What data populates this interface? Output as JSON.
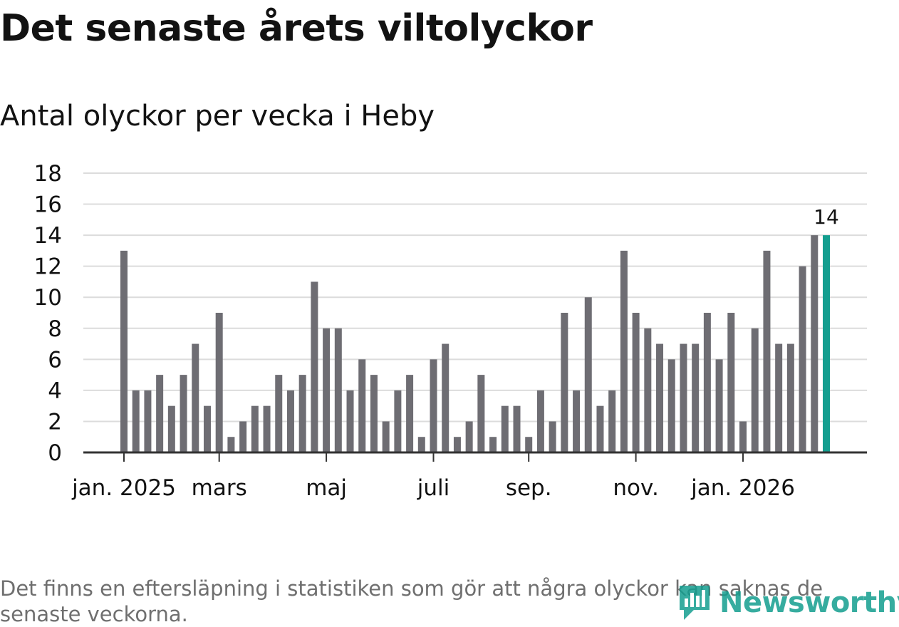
{
  "header": {
    "title": "Det senaste årets viltolyckor",
    "subtitle": "Antal olyckor per vecka i Heby"
  },
  "footer": {
    "note": "Det finns en eftersläpning i statistiken som gör att några olyckor kan saknas de senaste veckorna.",
    "brand": "Newsworthy"
  },
  "colors": {
    "bar": "#6e6d73",
    "highlight": "#149e8f",
    "grid": "#dcdcdc",
    "axis": "#333333",
    "text": "#121212"
  },
  "chart_data": {
    "type": "bar",
    "ylim": [
      0,
      18
    ],
    "yticks": [
      0,
      2,
      4,
      6,
      8,
      10,
      12,
      14,
      16,
      18
    ],
    "grid": true,
    "xtick_labels": [
      {
        "label": "jan. 2025",
        "at_index": 0
      },
      {
        "label": "mars",
        "at_index": 8
      },
      {
        "label": "maj",
        "at_index": 17
      },
      {
        "label": "juli",
        "at_index": 26
      },
      {
        "label": "sep.",
        "at_index": 34
      },
      {
        "label": "nov.",
        "at_index": 43
      },
      {
        "label": "jan. 2026",
        "at_index": 52
      }
    ],
    "values": [
      13,
      4,
      4,
      5,
      3,
      5,
      7,
      3,
      9,
      1,
      2,
      3,
      3,
      5,
      4,
      5,
      11,
      8,
      8,
      4,
      6,
      5,
      2,
      4,
      5,
      1,
      6,
      7,
      1,
      2,
      5,
      1,
      3,
      3,
      1,
      4,
      2,
      9,
      4,
      10,
      3,
      4,
      13,
      9,
      8,
      7,
      6,
      7,
      7,
      9,
      6,
      9,
      2,
      8,
      13,
      7,
      7,
      12,
      14,
      14
    ],
    "highlight_index": 59,
    "data_labels": [
      {
        "index": 59,
        "text": "14"
      }
    ]
  }
}
